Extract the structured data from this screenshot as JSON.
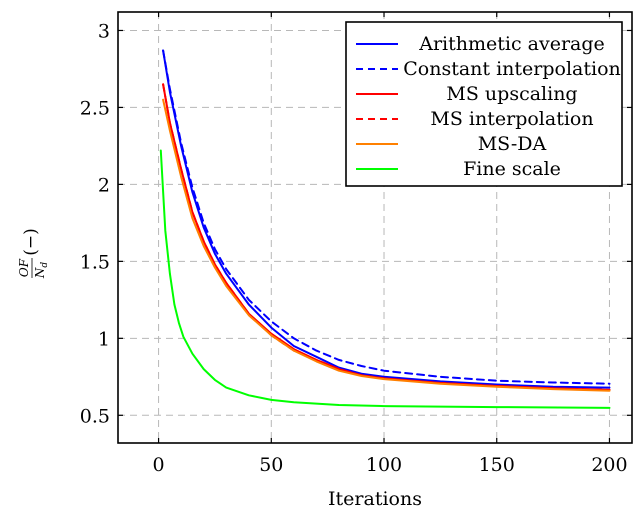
{
  "chart_data": {
    "type": "line",
    "xlabel": "Iterations",
    "ylabel": "OF/N_d (−)",
    "xlim": [
      -18,
      210
    ],
    "ylim": [
      0.32,
      3.12
    ],
    "x_ticks": [
      0,
      50,
      100,
      150,
      200
    ],
    "y_ticks": [
      0.5,
      1,
      1.5,
      2,
      2.5,
      3
    ],
    "x_tick_labels": [
      "0",
      "50",
      "100",
      "150",
      "200"
    ],
    "y_tick_labels": [
      "0.5",
      "1",
      "1.5",
      "2",
      "2.5",
      "3"
    ],
    "grid": true,
    "legend_position": "top-right",
    "series": [
      {
        "name": "Arithmetic average",
        "color": "#0000ff",
        "dash": "solid",
        "x": [
          2,
          5,
          10,
          15,
          20,
          25,
          30,
          40,
          50,
          60,
          70,
          80,
          90,
          100,
          125,
          150,
          175,
          200
        ],
        "y": [
          2.87,
          2.6,
          2.25,
          1.95,
          1.72,
          1.55,
          1.42,
          1.22,
          1.07,
          0.95,
          0.88,
          0.81,
          0.77,
          0.75,
          0.72,
          0.7,
          0.685,
          0.68
        ]
      },
      {
        "name": "Constant interpolation",
        "color": "#0000ff",
        "dash": "dashed",
        "x": [
          2,
          5,
          10,
          15,
          20,
          25,
          30,
          40,
          50,
          60,
          70,
          80,
          90,
          100,
          125,
          150,
          175,
          200
        ],
        "y": [
          2.87,
          2.62,
          2.27,
          1.98,
          1.75,
          1.58,
          1.45,
          1.25,
          1.11,
          1.0,
          0.92,
          0.86,
          0.82,
          0.79,
          0.75,
          0.725,
          0.713,
          0.705
        ]
      },
      {
        "name": "MS upscaling",
        "color": "#ff0000",
        "dash": "solid",
        "x": [
          2,
          5,
          10,
          15,
          20,
          25,
          30,
          40,
          50,
          60,
          70,
          80,
          90,
          100,
          125,
          150,
          175,
          200
        ],
        "y": [
          2.65,
          2.4,
          2.1,
          1.82,
          1.63,
          1.48,
          1.36,
          1.16,
          1.03,
          0.93,
          0.86,
          0.8,
          0.76,
          0.74,
          0.71,
          0.69,
          0.675,
          0.665
        ]
      },
      {
        "name": "MS interpolation",
        "color": "#ff0000",
        "dash": "dashed",
        "x": [
          2,
          5,
          10,
          15,
          20,
          25,
          30,
          40,
          50,
          60,
          70,
          80,
          90,
          100,
          125,
          150,
          175,
          200
        ],
        "y": [
          2.65,
          2.4,
          2.1,
          1.82,
          1.63,
          1.48,
          1.36,
          1.16,
          1.02,
          0.92,
          0.86,
          0.8,
          0.76,
          0.74,
          0.71,
          0.69,
          0.675,
          0.665
        ]
      },
      {
        "name": "MS-DA",
        "color": "#ff8000",
        "dash": "solid",
        "x": [
          2,
          5,
          10,
          15,
          20,
          25,
          30,
          40,
          50,
          60,
          70,
          80,
          90,
          100,
          125,
          150,
          175,
          200
        ],
        "y": [
          2.55,
          2.35,
          2.05,
          1.78,
          1.6,
          1.46,
          1.34,
          1.15,
          1.02,
          0.92,
          0.85,
          0.79,
          0.755,
          0.735,
          0.705,
          0.685,
          0.67,
          0.66
        ]
      },
      {
        "name": "Fine scale",
        "color": "#00ff00",
        "dash": "solid",
        "x": [
          1,
          3,
          5,
          7,
          9,
          11,
          15,
          20,
          25,
          30,
          40,
          50,
          60,
          80,
          100,
          150,
          200
        ],
        "y": [
          2.22,
          1.7,
          1.42,
          1.22,
          1.1,
          1.01,
          0.9,
          0.8,
          0.73,
          0.68,
          0.63,
          0.6,
          0.585,
          0.567,
          0.56,
          0.553,
          0.548
        ]
      }
    ]
  }
}
